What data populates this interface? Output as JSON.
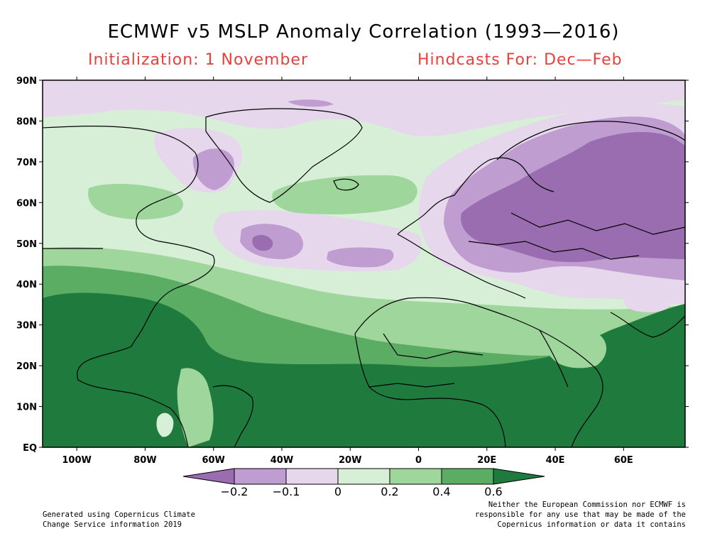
{
  "title": "ECMWF v5 MSLP Anomaly Correlation (1993—2016)",
  "subtitle_left": "Initialization: 1 November",
  "subtitle_right": "Hindcasts For: Dec—Feb",
  "lat_labels": [
    "90N",
    "80N",
    "70N",
    "60N",
    "50N",
    "40N",
    "30N",
    "20N",
    "10N",
    "EQ"
  ],
  "lon_labels": [
    "100W",
    "80W",
    "60W",
    "40W",
    "20W",
    "0",
    "20E",
    "40E",
    "60E"
  ],
  "colorbar": {
    "labels": [
      "−0.2",
      "−0.1",
      "0",
      "0.2",
      "0.4",
      "0.6"
    ],
    "colors": [
      "#9a6db0",
      "#bf9dd0",
      "#e7d7ec",
      "#d7efd6",
      "#9fd69c",
      "#5aad62",
      "#1f7a3e"
    ]
  },
  "colors": {
    "neg_strong": "#9a6db0",
    "neg_mid": "#bf9dd0",
    "neg_light": "#e7d7ec",
    "pos_light": "#d7efd6",
    "pos_mid": "#9fd69c",
    "pos_high": "#5aad62",
    "pos_strong": "#1f7a3e",
    "subtitle": "#e8403a"
  },
  "credit_left": [
    "Generated using Copernicus Climate",
    "Change Service information 2019"
  ],
  "credit_right": [
    "Neither the European Commission nor ECMWF is",
    "responsible for any use that may be made of the",
    "Copernicus information or data it contains"
  ]
}
